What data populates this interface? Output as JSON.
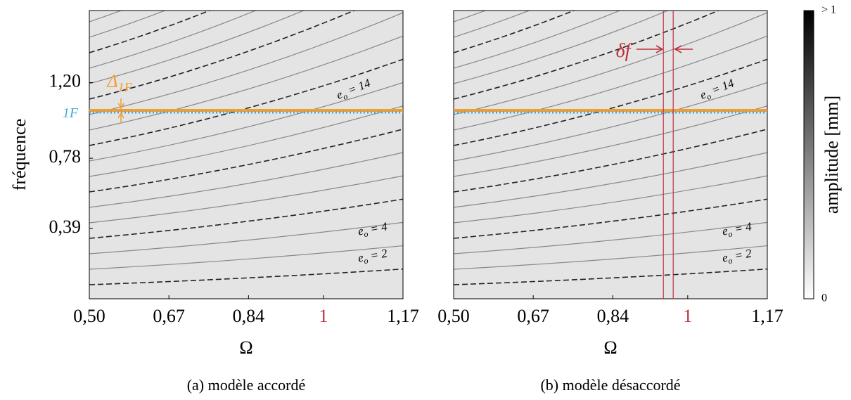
{
  "chart_data": [
    {
      "type": "heatmap",
      "xlabel": "Ω",
      "ylabel": "fréquence",
      "caption": "(a) modèle accordé",
      "xlim": [
        0.5,
        1.17
      ],
      "ylim": [
        0,
        1.6
      ],
      "xticks": [
        {
          "value": 0.5,
          "label": "0,50"
        },
        {
          "value": 0.67,
          "label": "0,67"
        },
        {
          "value": 0.84,
          "label": "0,84"
        },
        1,
        {
          "value": 1.17,
          "label": "1,17"
        }
      ],
      "yticks": [
        {
          "value": 0.39,
          "label": "0,39"
        },
        {
          "value": 0.78,
          "label": "0,78"
        },
        {
          "value": 1.2,
          "label": "1,20"
        }
      ],
      "hlines": [
        {
          "value": 1.046,
          "color": "#f39c2e",
          "dashed": false
        },
        {
          "value": 1.034,
          "color": "#3fa9dc",
          "dashed": true
        }
      ],
      "vlines": [],
      "annotations": [
        {
          "base": "Δ",
          "sub": "1F",
          "rest": "",
          "color": "#f39c2e"
        },
        {
          "base": "1F",
          "sub": "",
          "rest": "",
          "color": "#3fa9dc"
        },
        {
          "base": "e",
          "sub": "o",
          "rest": " = 14",
          "color": "#000000"
        },
        {
          "base": "e",
          "sub": "o",
          "rest": " = 4",
          "color": "#000000"
        },
        {
          "base": "e",
          "sub": "o",
          "rest": " = 2",
          "color": "#000000"
        }
      ]
    },
    {
      "type": "heatmap",
      "xlabel": "Ω",
      "caption": "(b) modèle désaccordé",
      "xlim": [
        0.5,
        1.17
      ],
      "ylim": [
        0,
        1.6
      ],
      "xticks": [
        {
          "value": 0.5,
          "label": "0,50"
        },
        {
          "value": 0.67,
          "label": "0,67"
        },
        {
          "value": 0.84,
          "label": "0,84"
        },
        1,
        {
          "value": 1.17,
          "label": "1,17"
        }
      ],
      "hlines": [
        {
          "value": 1.046,
          "color": "#f39c2e",
          "dashed": false
        },
        {
          "value": 1.034,
          "color": "#3fa9dc",
          "dashed": true
        }
      ],
      "vlines": [
        {
          "value": 0.948,
          "color": "#c0303c"
        },
        {
          "value": 0.969,
          "color": "#c0303c"
        }
      ],
      "annotations": [
        {
          "base": "δ",
          "sub": "",
          "rest": "f",
          "color": "#c0303c"
        },
        {
          "base": "e",
          "sub": "o",
          "rest": " = 14",
          "color": "#000000"
        },
        {
          "base": "e",
          "sub": "o",
          "rest": " = 4",
          "color": "#000000"
        },
        {
          "base": "e",
          "sub": "o",
          "rest": " = 2",
          "color": "#000000"
        }
      ],
      "colorbar": {
        "label": "amplitude [mm]",
        "ticks": [
          {
            "value": 1,
            "label": "> 1"
          },
          0
        ]
      }
    }
  ]
}
